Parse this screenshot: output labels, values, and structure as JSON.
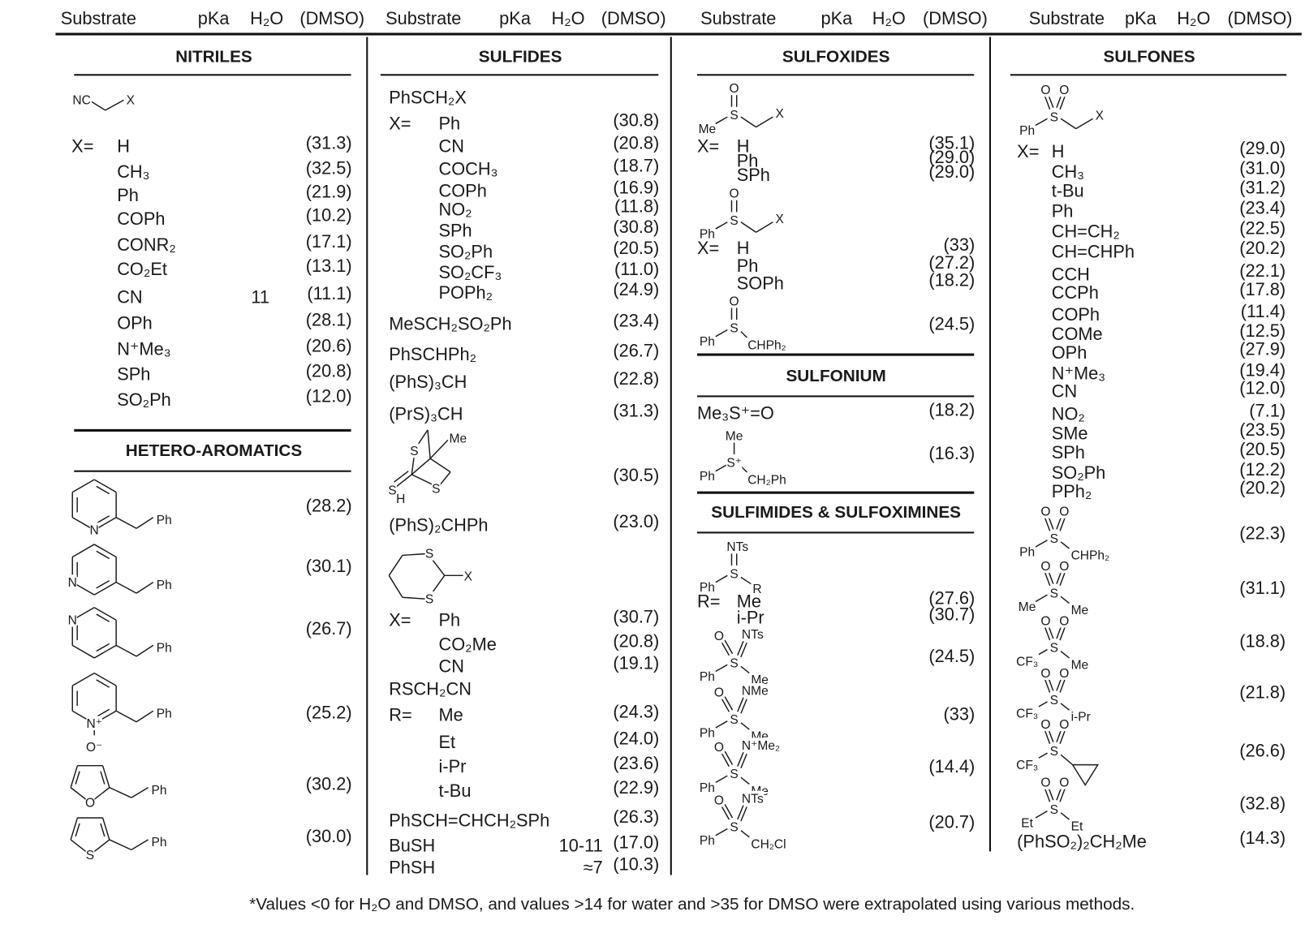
{
  "header": {
    "columns": [
      {
        "substrate": "Substrate",
        "pka": "pKa",
        "h2o": "H₂O",
        "dmso": "(DMSO)"
      },
      {
        "substrate": "Substrate",
        "pka": "pKa",
        "h2o": "H₂O",
        "dmso": "(DMSO)"
      },
      {
        "substrate": "Substrate",
        "pka": "pKa",
        "h2o": "H₂O",
        "dmso": "(DMSO)"
      },
      {
        "substrate": "Substrate",
        "pka": "pKa",
        "h2o": "H₂O",
        "dmso": "(DMSO)"
      }
    ]
  },
  "columns": [
    {
      "title": "NITRILES",
      "items": [
        {
          "type": "structure",
          "kind": "nitrile-chain",
          "atoms": [
            "NC",
            "X"
          ]
        },
        {
          "type": "row",
          "prefix": "X=",
          "label": "H",
          "dmso": "(31.3)"
        },
        {
          "type": "row",
          "label": "CH₃",
          "dmso": "(32.5)"
        },
        {
          "type": "row",
          "label": "Ph",
          "dmso": "(21.9)"
        },
        {
          "type": "row",
          "label": "COPh",
          "dmso": "(10.2)"
        },
        {
          "type": "row",
          "label": "CONR₂",
          "dmso": "(17.1)"
        },
        {
          "type": "row",
          "label": "CO₂Et",
          "dmso": "(13.1)"
        },
        {
          "type": "row",
          "label": "CN",
          "h2o": "11",
          "dmso": "(11.1)"
        },
        {
          "type": "row",
          "label": "OPh",
          "dmso": "(28.1)"
        },
        {
          "type": "row",
          "label": "N⁺Me₃",
          "dmso": "(20.6)"
        },
        {
          "type": "row",
          "label": "SPh",
          "dmso": "(20.8)"
        },
        {
          "type": "row",
          "label": "SO₂Ph",
          "dmso": "(12.0)"
        },
        {
          "type": "section",
          "title": "HETERO-AROMATICS"
        },
        {
          "type": "structure",
          "kind": "pyridine-2",
          "atoms": [
            "N",
            "Ph"
          ],
          "dmso": "(28.2)"
        },
        {
          "type": "structure",
          "kind": "pyridine-3",
          "atoms": [
            "N",
            "Ph"
          ],
          "dmso": "(30.1)"
        },
        {
          "type": "structure",
          "kind": "pyridine-4",
          "atoms": [
            "N",
            "Ph"
          ],
          "dmso": "(26.7)"
        },
        {
          "type": "structure",
          "kind": "pyridine-n-oxide",
          "atoms": [
            "N⁺",
            "O⁻",
            "Ph"
          ],
          "dmso": "(25.2)"
        },
        {
          "type": "structure",
          "kind": "furan",
          "atoms": [
            "O",
            "Ph"
          ],
          "dmso": "(30.2)"
        },
        {
          "type": "structure",
          "kind": "thiophene",
          "atoms": [
            "S",
            "Ph"
          ],
          "dmso": "(30.0)"
        }
      ]
    },
    {
      "title": "SULFIDES",
      "items": [
        {
          "type": "row",
          "label": "PhSCH₂X"
        },
        {
          "type": "row",
          "prefix": "X=",
          "label": "Ph",
          "dmso": "(30.8)"
        },
        {
          "type": "row",
          "label": "CN",
          "dmso": "(20.8)"
        },
        {
          "type": "row",
          "label": "COCH₃",
          "dmso": "(18.7)"
        },
        {
          "type": "row",
          "label": "COPh",
          "dmso": "(16.9)"
        },
        {
          "type": "row",
          "label": "NO₂",
          "dmso": "(11.8)"
        },
        {
          "type": "row",
          "label": "SPh",
          "dmso": "(30.8)"
        },
        {
          "type": "row",
          "label": "SO₂Ph",
          "dmso": "(20.5)"
        },
        {
          "type": "row",
          "label": "SO₂CF₃",
          "dmso": "(11.0)"
        },
        {
          "type": "row",
          "label": "POPh₂",
          "dmso": "(24.9)"
        },
        {
          "type": "row",
          "label": "MeSCH₂SO₂Ph",
          "dmso": "(23.4)"
        },
        {
          "type": "row",
          "label": "PhSCHPh₂",
          "dmso": "(26.7)"
        },
        {
          "type": "row",
          "label": "(PhS)₃CH",
          "dmso": "(22.8)"
        },
        {
          "type": "row",
          "label": "(PrS)₃CH",
          "dmso": "(31.3)"
        },
        {
          "type": "structure",
          "kind": "trithiabicycle",
          "atoms": [
            "S",
            "Me",
            "S",
            "S",
            "H"
          ],
          "dmso": "(30.5)"
        },
        {
          "type": "row",
          "label": "(PhS)₂CHPh",
          "dmso": "(23.0)"
        },
        {
          "type": "structure",
          "kind": "dithiane",
          "atoms": [
            "S",
            "S",
            "X"
          ]
        },
        {
          "type": "row",
          "prefix": "X=",
          "label": "Ph",
          "dmso": "(30.7)"
        },
        {
          "type": "row",
          "label": "CO₂Me",
          "dmso": "(20.8)"
        },
        {
          "type": "row",
          "label": "CN",
          "dmso": "(19.1)"
        },
        {
          "type": "row",
          "label": "RSCH₂CN"
        },
        {
          "type": "row",
          "prefix": "R=",
          "label": "Me",
          "dmso": "(24.3)"
        },
        {
          "type": "row",
          "label": "Et",
          "dmso": "(24.0)"
        },
        {
          "type": "row",
          "label": "i-Pr",
          "dmso": "(23.6)"
        },
        {
          "type": "row",
          "label": "t-Bu",
          "dmso": "(22.9)"
        },
        {
          "type": "row",
          "label": "PhSCH=CHCH₂SPh",
          "dmso": "(26.3)"
        },
        {
          "type": "row",
          "label": "BuSH",
          "h2o": "10-11",
          "dmso": "(17.0)"
        },
        {
          "type": "row",
          "label": "PhSH",
          "h2o": "≈7",
          "dmso": "(10.3)"
        }
      ]
    },
    {
      "title": "SULFOXIDES",
      "items": [
        {
          "type": "structure",
          "kind": "sulfoxide-chain",
          "atoms": [
            "O",
            "S",
            "Me",
            "X"
          ]
        },
        {
          "type": "row",
          "prefix": "X=",
          "label": "H",
          "dmso": "(35.1)"
        },
        {
          "type": "row",
          "label": "Ph",
          "dmso": "(29.0)"
        },
        {
          "type": "row",
          "label": "SPh",
          "dmso": "(29.0)"
        },
        {
          "type": "structure",
          "kind": "sulfoxide-chain",
          "atoms": [
            "O",
            "S",
            "Ph",
            "X"
          ]
        },
        {
          "type": "row",
          "prefix": "X=",
          "label": "H",
          "dmso": "(33)"
        },
        {
          "type": "row",
          "label": "Ph",
          "dmso": "(27.2)"
        },
        {
          "type": "row",
          "label": "SOPh",
          "dmso": "(18.2)"
        },
        {
          "type": "structure",
          "kind": "sulfoxide-direct",
          "atoms": [
            "O",
            "S",
            "Ph",
            "CHPh₂"
          ],
          "dmso": "(24.5)"
        },
        {
          "type": "section",
          "title": "SULFONIUM"
        },
        {
          "type": "row",
          "label": "Me₃S⁺=O",
          "dmso": "(18.2)"
        },
        {
          "type": "structure",
          "kind": "sulfonium",
          "atoms": [
            "Me",
            "S⁺",
            "Ph",
            "CH₂Ph"
          ],
          "dmso": "(16.3)"
        },
        {
          "type": "section",
          "title": "SULFIMIDES & SULFOXIMINES"
        },
        {
          "type": "structure",
          "kind": "sulfimide",
          "atoms": [
            "NTs",
            "S",
            "Ph",
            "R"
          ]
        },
        {
          "type": "row",
          "prefix": "R=",
          "label": "Me",
          "dmso": "(27.6)"
        },
        {
          "type": "row",
          "label": "i-Pr",
          "dmso": "(30.7)"
        },
        {
          "type": "structure",
          "kind": "sulfoximine",
          "atoms": [
            "O",
            "NTs",
            "S",
            "Ph",
            "Me"
          ],
          "dmso": "(24.5)"
        },
        {
          "type": "structure",
          "kind": "sulfoximine",
          "atoms": [
            "O",
            "NMe",
            "S",
            "Ph",
            "Me"
          ],
          "dmso": "(33)"
        },
        {
          "type": "structure",
          "kind": "sulfoximine",
          "atoms": [
            "O",
            "N⁺Me₂",
            "S",
            "Ph",
            "Me"
          ],
          "dmso": "(14.4)"
        },
        {
          "type": "structure",
          "kind": "sulfoximine",
          "atoms": [
            "O",
            "NTs",
            "S",
            "Ph",
            "CH₂Cl"
          ],
          "dmso": "(20.7)"
        }
      ]
    },
    {
      "title": "SULFONES",
      "items": [
        {
          "type": "structure",
          "kind": "sulfone-chain",
          "atoms": [
            "O",
            "O",
            "S",
            "Ph",
            "X"
          ]
        },
        {
          "type": "row",
          "prefix": "X=",
          "label": "H",
          "dmso": "(29.0)"
        },
        {
          "type": "row",
          "label": "CH₃",
          "dmso": "(31.0)"
        },
        {
          "type": "row",
          "label": "t-Bu",
          "dmso": "(31.2)"
        },
        {
          "type": "row",
          "label": "Ph",
          "dmso": "(23.4)"
        },
        {
          "type": "row",
          "label": "CH=CH₂",
          "dmso": "(22.5)"
        },
        {
          "type": "row",
          "label": "CH=CHPh",
          "dmso": "(20.2)"
        },
        {
          "type": "row",
          "label": "CCH",
          "dmso": "(22.1)"
        },
        {
          "type": "row",
          "label": "CCPh",
          "dmso": "(17.8)"
        },
        {
          "type": "row",
          "label": "COPh",
          "dmso": "(11.4)"
        },
        {
          "type": "row",
          "label": "COMe",
          "dmso": "(12.5)"
        },
        {
          "type": "row",
          "label": "OPh",
          "dmso": "(27.9)"
        },
        {
          "type": "row",
          "label": "N⁺Me₃",
          "dmso": "(19.4)"
        },
        {
          "type": "row",
          "label": "CN",
          "dmso": "(12.0)"
        },
        {
          "type": "row",
          "label": "NO₂",
          "dmso": "(7.1)"
        },
        {
          "type": "row",
          "label": "SMe",
          "dmso": "(23.5)"
        },
        {
          "type": "row",
          "label": "SPh",
          "dmso": "(20.5)"
        },
        {
          "type": "row",
          "label": "SO₂Ph",
          "dmso": "(12.2)"
        },
        {
          "type": "row",
          "label": "PPh₂",
          "dmso": "(20.2)"
        },
        {
          "type": "structure",
          "kind": "sulfone-direct",
          "atoms": [
            "O",
            "O",
            "S",
            "Ph",
            "CHPh₂"
          ],
          "dmso": "(22.3)"
        },
        {
          "type": "structure",
          "kind": "sulfone-direct",
          "atoms": [
            "O",
            "O",
            "S",
            "Me",
            "Me"
          ],
          "dmso": "(31.1)"
        },
        {
          "type": "structure",
          "kind": "sulfone-direct",
          "atoms": [
            "O",
            "O",
            "S",
            "CF₃",
            "Me"
          ],
          "dmso": "(18.8)"
        },
        {
          "type": "structure",
          "kind": "sulfone-direct",
          "atoms": [
            "O",
            "O",
            "S",
            "CF₃",
            "i-Pr"
          ],
          "dmso": "(21.8)"
        },
        {
          "type": "structure",
          "kind": "sulfone-cyclopropyl",
          "atoms": [
            "O",
            "O",
            "S",
            "CF₃"
          ],
          "dmso": "(26.6)"
        },
        {
          "type": "structure",
          "kind": "sulfone-direct",
          "atoms": [
            "O",
            "O",
            "S",
            "Et",
            "Et"
          ],
          "dmso": "(32.8)"
        },
        {
          "type": "row",
          "label": "(PhSO₂)₂CH₂Me",
          "dmso": "(14.3)"
        }
      ]
    }
  ],
  "footnote": "*Values <0 for H₂O and DMSO, and values >14 for water and >35 for DMSO were extrapolated using various methods."
}
